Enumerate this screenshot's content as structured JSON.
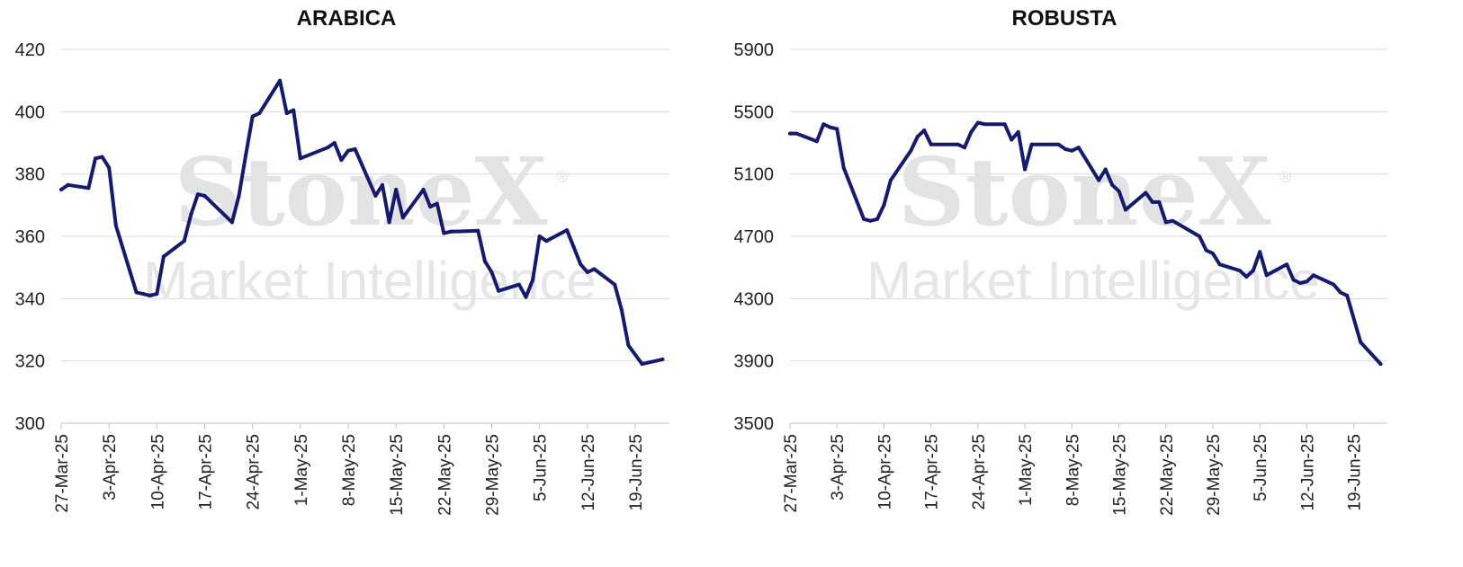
{
  "watermark": {
    "brand": "StoneX",
    "registered": "®",
    "tagline": "Market Intelligence"
  },
  "chart_data": [
    {
      "type": "line",
      "title": "ARABICA",
      "xlabel": "",
      "ylabel": "",
      "ylim": [
        300,
        420
      ],
      "yticks": [
        300,
        320,
        340,
        360,
        380,
        400,
        420
      ],
      "xlim": [
        "2025-03-27",
        "2025-06-24"
      ],
      "xticks": [
        "27-Mar-25",
        "3-Apr-25",
        "10-Apr-25",
        "17-Apr-25",
        "24-Apr-25",
        "1-May-25",
        "8-May-25",
        "15-May-25",
        "22-May-25",
        "29-May-25",
        "5-Jun-25",
        "12-Jun-25",
        "19-Jun-25"
      ],
      "grid": true,
      "line_color": "#141a6e",
      "series": [
        {
          "x": [
            "2025-03-27",
            "2025-03-28",
            "2025-03-31",
            "2025-04-01",
            "2025-04-02",
            "2025-04-03",
            "2025-04-04",
            "2025-04-07",
            "2025-04-08",
            "2025-04-09",
            "2025-04-10",
            "2025-04-11",
            "2025-04-14",
            "2025-04-15",
            "2025-04-16",
            "2025-04-17",
            "2025-04-21",
            "2025-04-22",
            "2025-04-23",
            "2025-04-24",
            "2025-04-25",
            "2025-04-28",
            "2025-04-29",
            "2025-04-30",
            "2025-05-01",
            "2025-05-05",
            "2025-05-06",
            "2025-05-07",
            "2025-05-08",
            "2025-05-09",
            "2025-05-12",
            "2025-05-13",
            "2025-05-14",
            "2025-05-15",
            "2025-05-16",
            "2025-05-19",
            "2025-05-20",
            "2025-05-21",
            "2025-05-22",
            "2025-05-23",
            "2025-05-27",
            "2025-05-28",
            "2025-05-29",
            "2025-05-30",
            "2025-06-02",
            "2025-06-03",
            "2025-06-04",
            "2025-06-05",
            "2025-06-06",
            "2025-06-09",
            "2025-06-10",
            "2025-06-11",
            "2025-06-12",
            "2025-06-13",
            "2025-06-16",
            "2025-06-17",
            "2025-06-18",
            "2025-06-20",
            "2025-06-23"
          ],
          "values": [
            375,
            376.5,
            375.5,
            385,
            385.5,
            382,
            363.5,
            342,
            341.5,
            341,
            341.5,
            353.5,
            358.5,
            367,
            373.5,
            373,
            364.5,
            373,
            386,
            398.5,
            399.5,
            410,
            399.5,
            400.5,
            385,
            388.5,
            390,
            384.5,
            387.5,
            388,
            373,
            376.5,
            364.5,
            375,
            366,
            375,
            369.5,
            370.5,
            361,
            361.5,
            361.8,
            352,
            348.5,
            342.5,
            344.5,
            340.5,
            346,
            360,
            358.5,
            362,
            356.5,
            351,
            348.5,
            349.5,
            344.5,
            336.5,
            325,
            319,
            320.5
          ]
        }
      ]
    },
    {
      "type": "line",
      "title": "ROBUSTA",
      "xlabel": "",
      "ylabel": "",
      "ylim": [
        3500,
        5900
      ],
      "yticks": [
        3500,
        3900,
        4300,
        4700,
        5100,
        5500,
        5900
      ],
      "xlim": [
        "2025-03-27",
        "2025-06-24"
      ],
      "xticks": [
        "27-Mar-25",
        "3-Apr-25",
        "10-Apr-25",
        "17-Apr-25",
        "24-Apr-25",
        "1-May-25",
        "8-May-25",
        "15-May-25",
        "22-May-25",
        "29-May-25",
        "5-Jun-25",
        "12-Jun-25",
        "19-Jun-25"
      ],
      "grid": true,
      "line_color": "#141a6e",
      "series": [
        {
          "x": [
            "2025-03-27",
            "2025-03-28",
            "2025-03-31",
            "2025-04-01",
            "2025-04-02",
            "2025-04-03",
            "2025-04-04",
            "2025-04-07",
            "2025-04-08",
            "2025-04-09",
            "2025-04-10",
            "2025-04-11",
            "2025-04-14",
            "2025-04-15",
            "2025-04-16",
            "2025-04-17",
            "2025-04-21",
            "2025-04-22",
            "2025-04-23",
            "2025-04-24",
            "2025-04-25",
            "2025-04-28",
            "2025-04-29",
            "2025-04-30",
            "2025-05-01",
            "2025-05-02",
            "2025-05-05",
            "2025-05-06",
            "2025-05-07",
            "2025-05-08",
            "2025-05-09",
            "2025-05-12",
            "2025-05-13",
            "2025-05-14",
            "2025-05-15",
            "2025-05-16",
            "2025-05-19",
            "2025-05-20",
            "2025-05-21",
            "2025-05-22",
            "2025-05-23",
            "2025-05-27",
            "2025-05-28",
            "2025-05-29",
            "2025-05-30",
            "2025-06-02",
            "2025-06-03",
            "2025-06-04",
            "2025-06-05",
            "2025-06-06",
            "2025-06-09",
            "2025-06-10",
            "2025-06-11",
            "2025-06-12",
            "2025-06-13",
            "2025-06-16",
            "2025-06-17",
            "2025-06-18",
            "2025-06-20",
            "2025-06-23"
          ],
          "values": [
            5360,
            5360,
            5310,
            5420,
            5400,
            5390,
            5140,
            4810,
            4800,
            4810,
            4900,
            5060,
            5250,
            5340,
            5380,
            5290,
            5290,
            5270,
            5370,
            5430,
            5420,
            5420,
            5320,
            5370,
            5130,
            5290,
            5290,
            5290,
            5260,
            5250,
            5270,
            5060,
            5130,
            5030,
            4990,
            4870,
            4980,
            4920,
            4920,
            4790,
            4800,
            4700,
            4610,
            4590,
            4520,
            4480,
            4440,
            4480,
            4600,
            4450,
            4520,
            4420,
            4400,
            4410,
            4450,
            4390,
            4340,
            4320,
            4020,
            3880
          ]
        }
      ]
    }
  ]
}
